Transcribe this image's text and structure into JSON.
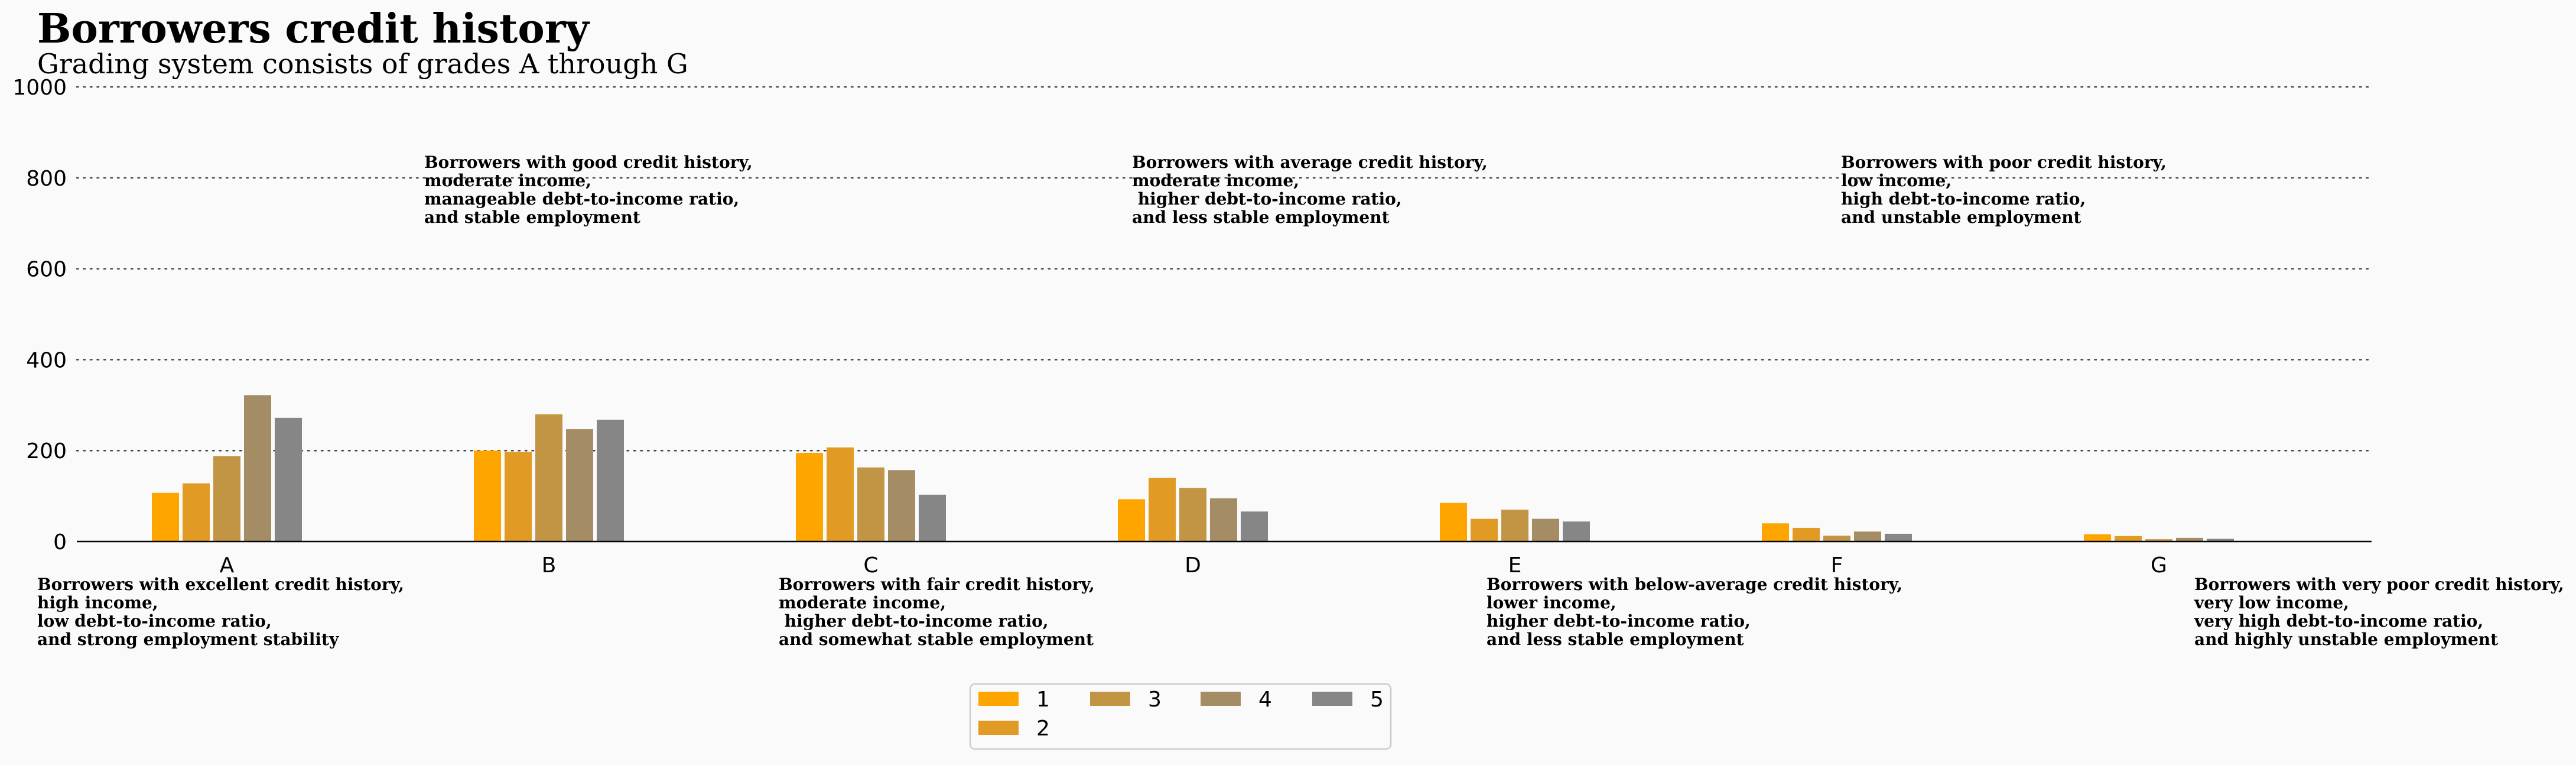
{
  "chart_data": {
    "type": "bar",
    "title": "Borrowers credit history",
    "subtitle": "Grading system consists of grades A through G",
    "xlabel": "",
    "ylabel": "",
    "ylim": [
      0,
      1000
    ],
    "yticks": [
      "0",
      "200",
      "400",
      "600",
      "800",
      "1000"
    ],
    "grid": "horizontal dotted",
    "legend_placement": "bottom-center",
    "categories": [
      "A",
      "B",
      "C",
      "D",
      "E",
      "F",
      "G"
    ],
    "series": [
      {
        "name": "1",
        "color": "#FFA500",
        "values": [
          107,
          200,
          195,
          93,
          85,
          40,
          16
        ]
      },
      {
        "name": "2",
        "color": "#E19A24",
        "values": [
          128,
          197,
          207,
          140,
          50,
          30,
          12
        ]
      },
      {
        "name": "3",
        "color": "#C29544",
        "values": [
          188,
          280,
          163,
          118,
          70,
          13,
          5
        ]
      },
      {
        "name": "4",
        "color": "#A48C64",
        "values": [
          322,
          247,
          157,
          95,
          50,
          22,
          8
        ]
      },
      {
        "name": "5",
        "color": "#868686",
        "values": [
          272,
          268,
          103,
          66,
          44,
          17,
          6
        ]
      }
    ],
    "annotations": [
      {
        "grade": "A",
        "position": "below",
        "lines": [
          "Borrowers with excellent credit history,",
          "high income,",
          "low debt-to-income ratio,",
          "and strong employment stability"
        ]
      },
      {
        "grade": "B",
        "position": "above",
        "lines": [
          "Borrowers with good credit history,",
          "moderate income,",
          "manageable debt-to-income ratio,",
          "and stable employment"
        ]
      },
      {
        "grade": "C",
        "position": "below",
        "lines": [
          "Borrowers with fair credit history,",
          "moderate income,",
          " higher debt-to-income ratio,",
          "and somewhat stable employment"
        ]
      },
      {
        "grade": "D",
        "position": "above",
        "lines": [
          "Borrowers with average credit history,",
          "moderate income,",
          " higher debt-to-income ratio,",
          "and less stable employment"
        ]
      },
      {
        "grade": "E",
        "position": "below",
        "lines": [
          "Borrowers with below-average credit history,",
          "lower income,",
          "higher debt-to-income ratio,",
          "and less stable employment"
        ]
      },
      {
        "grade": "F",
        "position": "above",
        "lines": [
          "Borrowers with poor credit history,",
          "low income,",
          "high debt-to-income ratio,",
          "and unstable employment"
        ]
      },
      {
        "grade": "G",
        "position": "below",
        "lines": [
          "Borrowers with very poor credit history,",
          "very low income,",
          "very high debt-to-income ratio,",
          "and highly unstable employment"
        ]
      }
    ]
  }
}
